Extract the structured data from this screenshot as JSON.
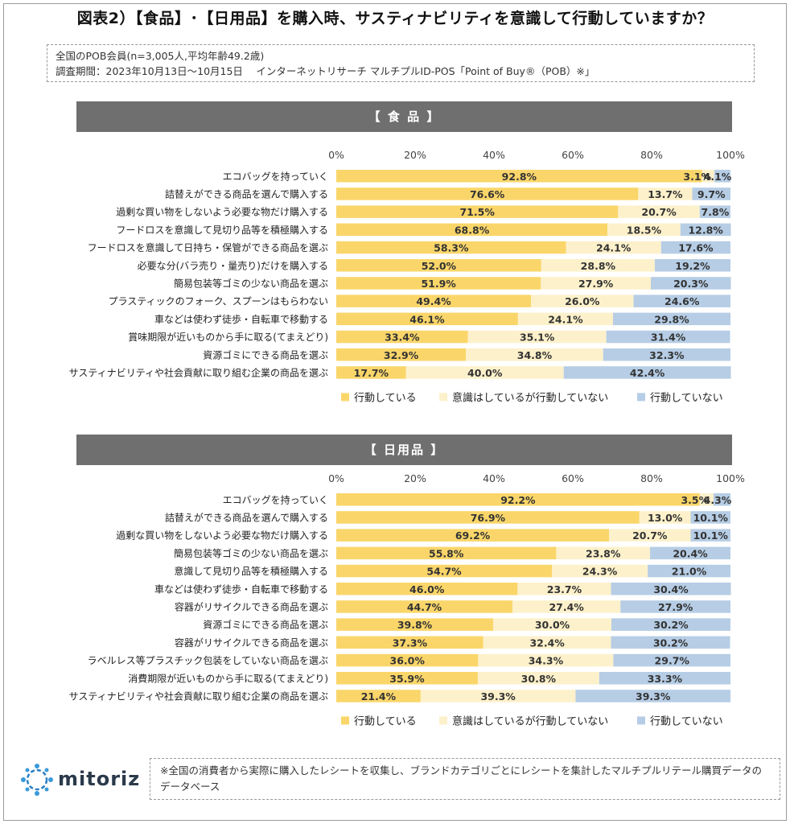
{
  "title": "図表2）【食品】･【日用品】を購入時、サスティナビリティを意識して行動していますか？",
  "info": {
    "line1": "全国のPOB会員(n=3,005人,平均年齢49.2歳)",
    "line2": "調査期間：2023年10月13日～10月15日　 インターネットリサーチ マルチプルID-POS「Point of Buy®（POB）※」"
  },
  "colors": {
    "acting": "#fad66a",
    "aware": "#fdf1cb",
    "not": "#b6cde5",
    "header_bg": "#6f6f6f"
  },
  "footer": {
    "logo_text": "mitoriz",
    "footnote": "※全国の消費者から実際に購入したレシートを収集し、ブランドカテゴリごとにレシートを集計したマルチプルリテール購買データのデータベース"
  },
  "chart_data": [
    {
      "type": "bar",
      "stacked": true,
      "orientation": "horizontal",
      "title": "【 食 品 】",
      "x_ticks": [
        "0%",
        "20%",
        "40%",
        "60%",
        "80%",
        "100%"
      ],
      "xlim": [
        0,
        100
      ],
      "legend_position": "bottom",
      "categories": [
        "エコバッグを持っていく",
        "詰替えができる商品を選んで購入する",
        "過剰な買い物をしないよう必要な物だけ購入する",
        "フードロスを意識して見切り品等を積極購入する",
        "フードロスを意識して日持ち・保管ができる商品を選ぶ",
        "必要な分(バラ売り・量売り)だけを購入する",
        "簡易包装等ゴミの少ない商品を選ぶ",
        "プラスティックのフォーク、スプーンはもらわない",
        "車などは使わず徒歩・自転車で移動する",
        "賞味期限が近いものから手に取る(てまえどり)",
        "資源ゴミにできる商品を選ぶ",
        "サスティナビリティや社会貢献に取り組む企業の商品を選ぶ"
      ],
      "series": [
        {
          "name": "行動している",
          "values": [
            92.8,
            76.6,
            71.5,
            68.8,
            58.3,
            52.0,
            51.9,
            49.4,
            46.1,
            33.4,
            32.9,
            17.7
          ]
        },
        {
          "name": "意識はしているが行動していない",
          "values": [
            3.1,
            13.7,
            20.7,
            18.5,
            24.1,
            28.8,
            27.9,
            26.0,
            24.1,
            35.1,
            34.8,
            40.0
          ]
        },
        {
          "name": "行動していない",
          "values": [
            4.1,
            9.7,
            7.8,
            12.8,
            17.6,
            19.2,
            20.3,
            24.6,
            29.8,
            31.4,
            32.3,
            42.4
          ]
        }
      ]
    },
    {
      "type": "bar",
      "stacked": true,
      "orientation": "horizontal",
      "title": "【 日用品 】",
      "x_ticks": [
        "0%",
        "20%",
        "40%",
        "60%",
        "80%",
        "100%"
      ],
      "xlim": [
        0,
        100
      ],
      "legend_position": "bottom",
      "categories": [
        "エコバッグを持っていく",
        "詰替えができる商品を選んで購入する",
        "過剰な買い物をしないよう必要な物だけ購入する",
        "簡易包装等ゴミの少ない商品を選ぶ",
        "意識して見切り品等を積極購入する",
        "車などは使わず徒歩・自転車で移動する",
        "容器がリサイクルできる商品を選ぶ",
        "資源ゴミにできる商品を選ぶ",
        "容器がリサイクルできる商品を選ぶ",
        "ラベルレス等プラスチック包装をしていない商品を選ぶ",
        "消費期限が近いものから手に取る(てまえどり)",
        "サスティナビリティや社会貢献に取り組む企業の商品を選ぶ"
      ],
      "series": [
        {
          "name": "行動している",
          "values": [
            92.2,
            76.9,
            69.2,
            55.8,
            54.7,
            46.0,
            44.7,
            39.8,
            37.3,
            36.0,
            35.9,
            21.4
          ]
        },
        {
          "name": "意識はしているが行動していない",
          "values": [
            3.5,
            13.0,
            20.7,
            23.8,
            24.3,
            23.7,
            27.4,
            30.0,
            32.4,
            34.3,
            30.8,
            39.3
          ]
        },
        {
          "name": "行動していない",
          "values": [
            4.3,
            10.1,
            10.1,
            20.4,
            21.0,
            30.4,
            27.9,
            30.2,
            30.2,
            29.7,
            33.3,
            39.3
          ]
        }
      ]
    }
  ]
}
